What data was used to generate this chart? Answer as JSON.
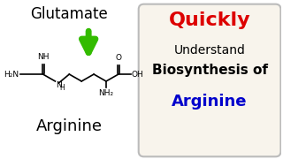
{
  "bg_color": "#ffffff",
  "right_bg": "#f8f4ec",
  "title_quickly": "Quickly",
  "title_quickly_color": "#dd0000",
  "text_understand": "Understand",
  "text_biosynthesis": "Biosynthesis of",
  "text_arginine_right": "Arginine",
  "text_arginine_right_color": "#0000cc",
  "text_glutamate": "Glutamate",
  "text_arginine_left": "Arginine",
  "arrow_color": "#33bb00",
  "box_edge_color": "#bbbbbb"
}
